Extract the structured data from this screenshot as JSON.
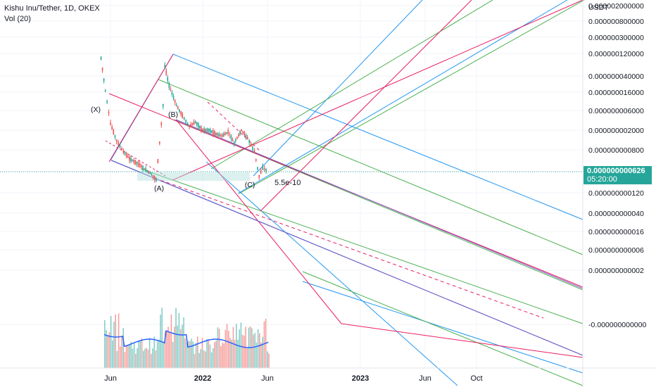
{
  "header": {
    "symbol_line": "Kishu Inu/Tether, 1D, OKEX",
    "indicator_line": "Vol (20)"
  },
  "axis": {
    "currency": "USDT",
    "y_ticks": [
      "0.000002000000",
      "0.000000800000",
      "0.000000300000",
      "0.000000120000",
      "0.000000040000",
      "0.000000016000",
      "0.000000006000",
      "0.000000002000",
      "0.000000000800",
      "0.000000000300",
      "0.000000000120",
      "0.000000000040",
      "0.000000000016",
      "0.000000000006",
      "0.000000000002",
      "-0.000000000000"
    ],
    "x_ticks": [
      "Jun",
      "2022",
      "Jun",
      "2023",
      "Jun",
      "Oct"
    ]
  },
  "current_price": {
    "label": "0.000000000626",
    "countdown": "05:20:00",
    "color": "#26a69a"
  },
  "annotations": {
    "wave_labels": [
      "(X)",
      "(B)",
      "(A)",
      "(C)"
    ],
    "price_note": "5.5e-10"
  },
  "colors": {
    "up": "#26a69a",
    "down": "#ef5350",
    "blue_lines": "#2196f3",
    "green_lines": "#4caf50",
    "pink_lines": "#e91e63",
    "vol_ma": "#2962ff",
    "grid": "#f0f3fa"
  },
  "chart_data": {
    "type": "line",
    "title": "Kishu Inu/Tether, 1D, OKEX",
    "y_scale": "log",
    "series": [
      {
        "name": "Kishu Inu/Tether",
        "x": [
          "2021-05-10",
          "2021-05-20",
          "2021-06-01",
          "2021-06-15",
          "2021-07-01",
          "2021-07-15",
          "2021-08-01",
          "2021-08-15",
          "2021-09-01",
          "2021-09-15",
          "2021-10-01",
          "2021-10-05",
          "2021-10-15",
          "2021-11-01",
          "2021-11-15",
          "2021-12-01",
          "2021-12-15",
          "2022-01-01",
          "2022-01-15",
          "2022-02-01",
          "2022-02-15",
          "2022-03-01",
          "2022-03-15",
          "2022-04-01",
          "2022-04-15",
          "2022-05-01",
          "2022-05-12",
          "2022-05-20",
          "2022-06-01"
        ],
        "values": [
          1.5e-08,
          6e-09,
          2.4e-09,
          1.5e-09,
          1.1e-09,
          9e-10,
          8e-10,
          7e-10,
          6e-10,
          5e-10,
          4e-09,
          1.2e-08,
          7e-09,
          4e-09,
          3e-09,
          2.2e-09,
          2.5e-09,
          2e-09,
          2e-09,
          1.8e-09,
          1.7e-09,
          1.9e-09,
          1.4e-09,
          2e-09,
          1.6e-09,
          1.1e-09,
          5.5e-10,
          7e-10,
          6.26e-10
        ]
      }
    ],
    "volume_series": {
      "name": "Vol (20)"
    }
  }
}
